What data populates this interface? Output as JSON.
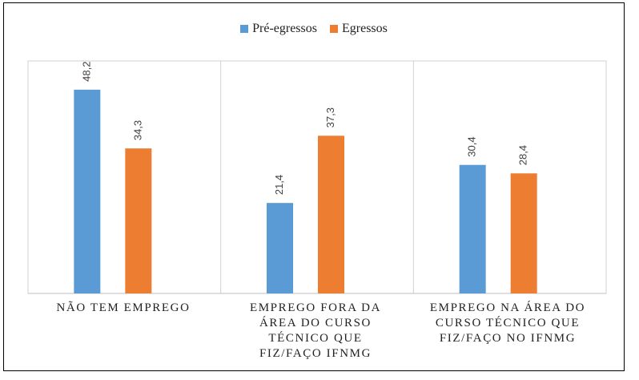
{
  "chart_data": {
    "type": "bar",
    "categories": [
      "NÃO TEM EMPREGO",
      "EMPREGO FORA DA\nÁREA DO CURSO\nTÉCNICO QUE\nFIZ/FAÇO IFNMG",
      "EMPREGO NA ÁREA DO\nCURSO TÉCNICO QUE\nFIZ/FAÇO NO IFNMG"
    ],
    "series": [
      {
        "name": "Pré-egressos",
        "color": "#5b9bd5",
        "values": [
          48.2,
          21.4,
          30.4
        ],
        "labels": [
          "48,2",
          "21,4",
          "30,4"
        ]
      },
      {
        "name": "Egressos",
        "color": "#ed7d31",
        "values": [
          34.3,
          37.3,
          28.4
        ],
        "labels": [
          "34,3",
          "37,3",
          "28,4"
        ]
      }
    ],
    "ylim": [
      0,
      55
    ],
    "legend": "top-center",
    "grid": false
  }
}
